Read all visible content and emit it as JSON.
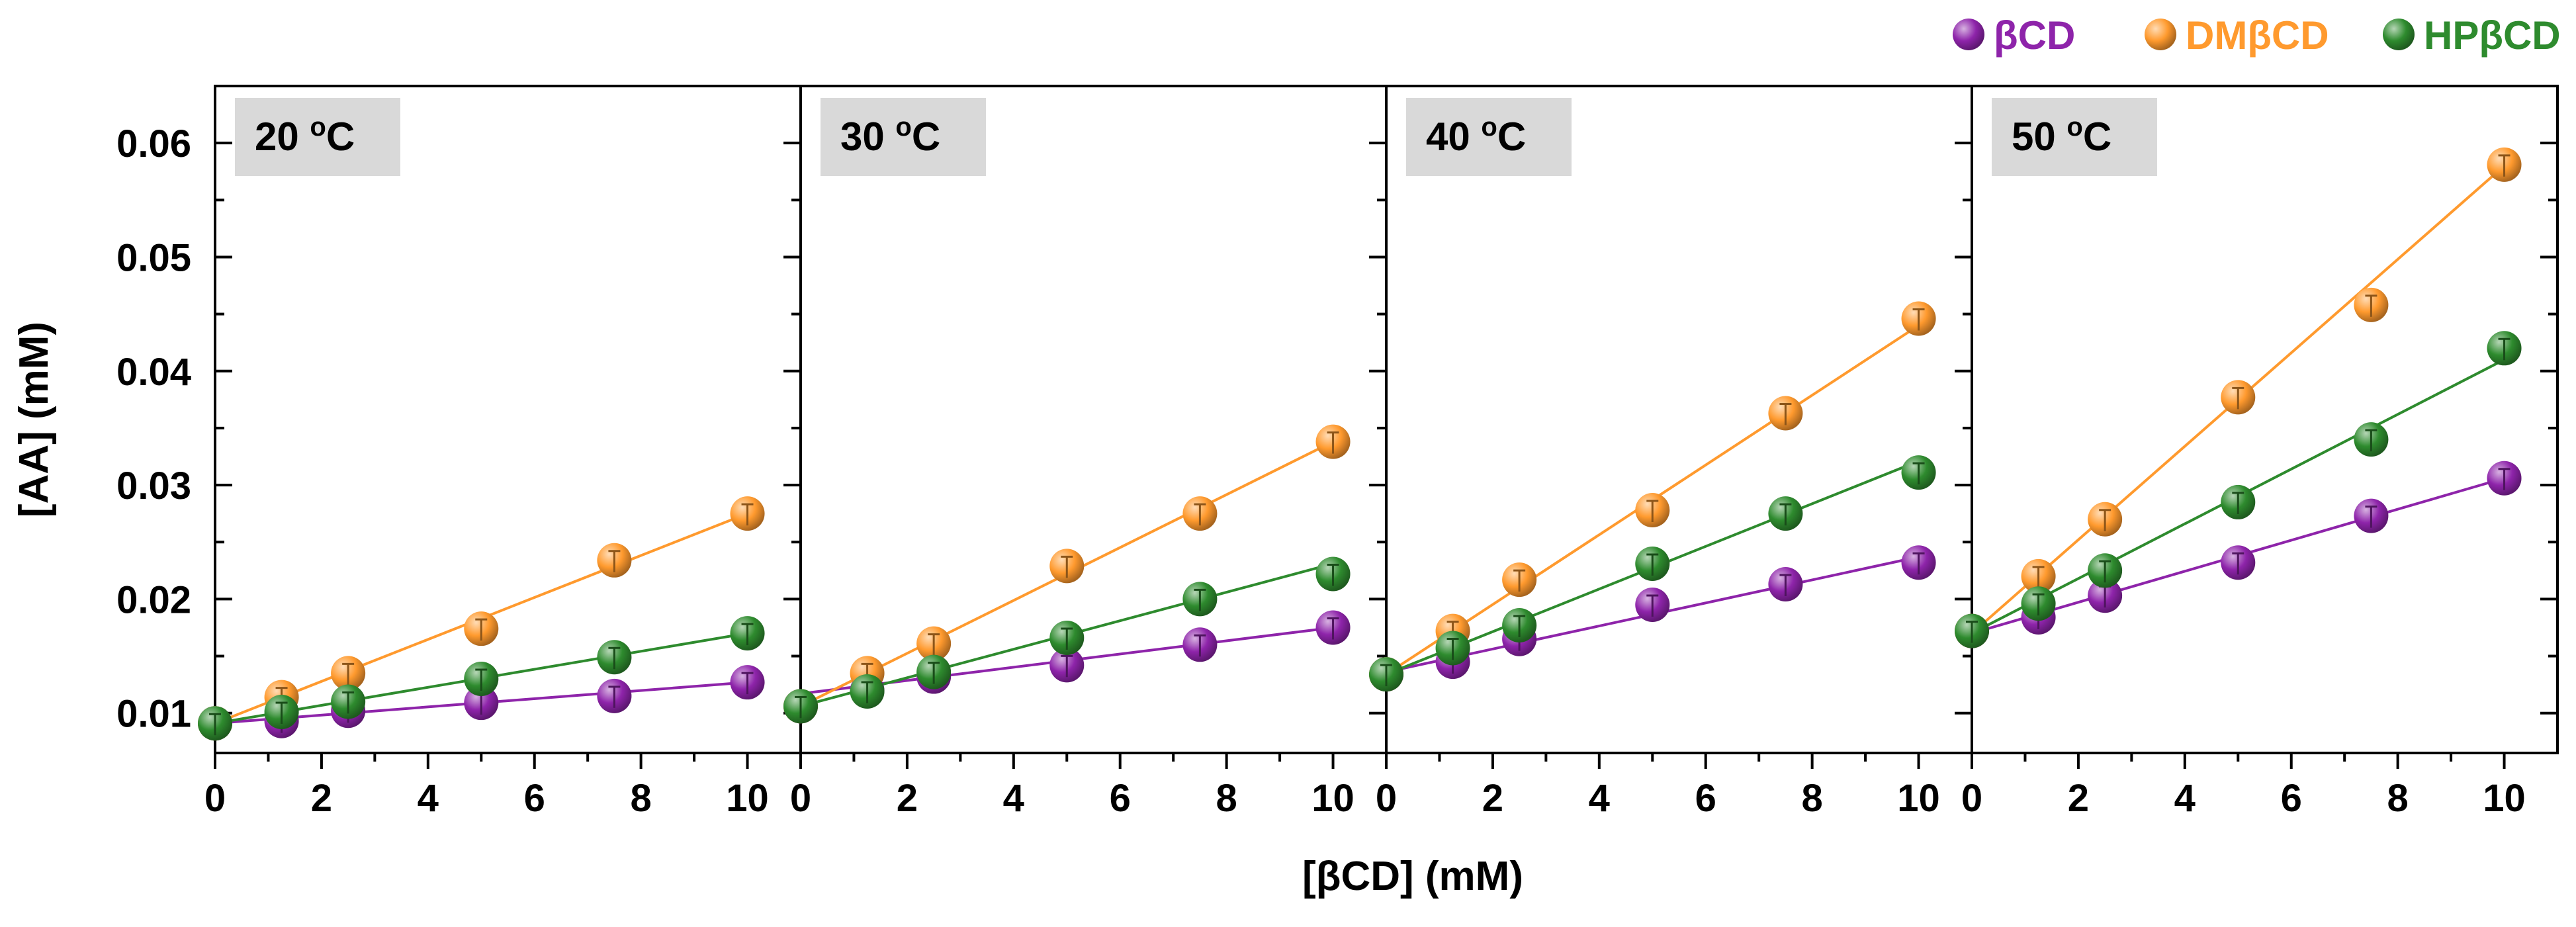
{
  "chart_data": {
    "type": "scatter",
    "xlabel": "[βCD] (mM)",
    "ylabel": "[AA] (mM)",
    "xlim": [
      0,
      11
    ],
    "ylim": [
      0.0065,
      0.065
    ],
    "x_ticks": [
      0,
      2,
      4,
      6,
      8,
      10
    ],
    "x_tick_labels": [
      "0",
      "2",
      "4",
      "6",
      "8",
      "10"
    ],
    "y_ticks": [
      0.01,
      0.02,
      0.03,
      0.04,
      0.05,
      0.06
    ],
    "y_tick_labels": [
      "0.01",
      "0.02",
      "0.03",
      "0.04",
      "0.05",
      "0.06"
    ],
    "legend": [
      {
        "name": "βCD",
        "color": "#8e24aa"
      },
      {
        "name": "DMβCD",
        "color": "#ff9a2e"
      },
      {
        "name": "HPβCD",
        "color": "#2e8b2e"
      }
    ],
    "legend_position": "top-right",
    "fit_lines": true,
    "panels": [
      {
        "label_prefix": "20 ",
        "label_sup": "o",
        "label_suffix": "C",
        "series": [
          {
            "name": "βCD",
            "x": [
              0,
              1.25,
              2.5,
              5,
              7.5,
              10
            ],
            "values": [
              0.0091,
              0.0093,
              0.0102,
              0.0109,
              0.0115,
              0.0127
            ],
            "fit": [
              0.0091,
              0.0127
            ]
          },
          {
            "name": "DMβCD",
            "x": [
              0,
              1.25,
              2.5,
              5,
              7.5,
              10
            ],
            "values": [
              0.0091,
              0.0114,
              0.0135,
              0.0174,
              0.0234,
              0.0275
            ],
            "fit": [
              0.0091,
              0.0275
            ]
          },
          {
            "name": "HPβCD",
            "x": [
              0,
              1.25,
              2.5,
              5,
              7.5,
              10
            ],
            "values": [
              0.0091,
              0.0101,
              0.011,
              0.013,
              0.0149,
              0.017
            ],
            "fit": [
              0.0091,
              0.017
            ]
          }
        ]
      },
      {
        "label_prefix": "30 ",
        "label_sup": "o",
        "label_suffix": "C",
        "series": [
          {
            "name": "βCD",
            "x": [
              0,
              1.25,
              2.5,
              5,
              7.5,
              10
            ],
            "values": [
              0.0106,
              0.012,
              0.0132,
              0.0142,
              0.016,
              0.0175
            ],
            "fit": [
              0.0117,
              0.0175
            ]
          },
          {
            "name": "DMβCD",
            "x": [
              0,
              1.25,
              2.5,
              5,
              7.5,
              10
            ],
            "values": [
              0.0106,
              0.0135,
              0.0161,
              0.0229,
              0.0275,
              0.0338
            ],
            "fit": [
              0.0106,
              0.0338
            ]
          },
          {
            "name": "HPβCD",
            "x": [
              0,
              1.25,
              2.5,
              5,
              7.5,
              10
            ],
            "values": [
              0.0106,
              0.0119,
              0.0136,
              0.0166,
              0.02,
              0.0222
            ],
            "fit": [
              0.0106,
              0.0231
            ]
          }
        ]
      },
      {
        "label_prefix": "40 ",
        "label_sup": "o",
        "label_suffix": "C",
        "series": [
          {
            "name": "βCD",
            "x": [
              0,
              1.25,
              2.5,
              5,
              7.5,
              10
            ],
            "values": [
              0.0134,
              0.0145,
              0.0165,
              0.0195,
              0.0213,
              0.0232
            ],
            "fit": [
              0.0136,
              0.0237
            ]
          },
          {
            "name": "DMβCD",
            "x": [
              0,
              1.25,
              2.5,
              5,
              7.5,
              10
            ],
            "values": [
              0.0134,
              0.0172,
              0.0217,
              0.0278,
              0.0363,
              0.0446
            ],
            "fit": [
              0.0134,
              0.044
            ]
          },
          {
            "name": "HPβCD",
            "x": [
              0,
              1.25,
              2.5,
              5,
              7.5,
              10
            ],
            "values": [
              0.0134,
              0.0157,
              0.0177,
              0.0231,
              0.0275,
              0.0311
            ],
            "fit": [
              0.0134,
              0.0321
            ]
          }
        ]
      },
      {
        "label_prefix": "50 ",
        "label_sup": "o",
        "label_suffix": "C",
        "series": [
          {
            "name": "βCD",
            "x": [
              0,
              1.25,
              2.5,
              5,
              7.5,
              10
            ],
            "values": [
              0.0172,
              0.0184,
              0.0203,
              0.0232,
              0.0273,
              0.0306
            ],
            "fit": [
              0.017,
              0.0306
            ]
          },
          {
            "name": "DMβCD",
            "x": [
              0,
              1.25,
              2.5,
              5,
              7.5,
              10
            ],
            "values": [
              0.0172,
              0.022,
              0.027,
              0.0377,
              0.0458,
              0.0581
            ],
            "fit": [
              0.017,
              0.058
            ]
          },
          {
            "name": "HPβCD",
            "x": [
              0,
              1.25,
              2.5,
              5,
              7.5,
              10
            ],
            "values": [
              0.0172,
              0.0196,
              0.0225,
              0.0285,
              0.034,
              0.042
            ],
            "fit": [
              0.017,
              0.041
            ]
          }
        ]
      }
    ]
  }
}
